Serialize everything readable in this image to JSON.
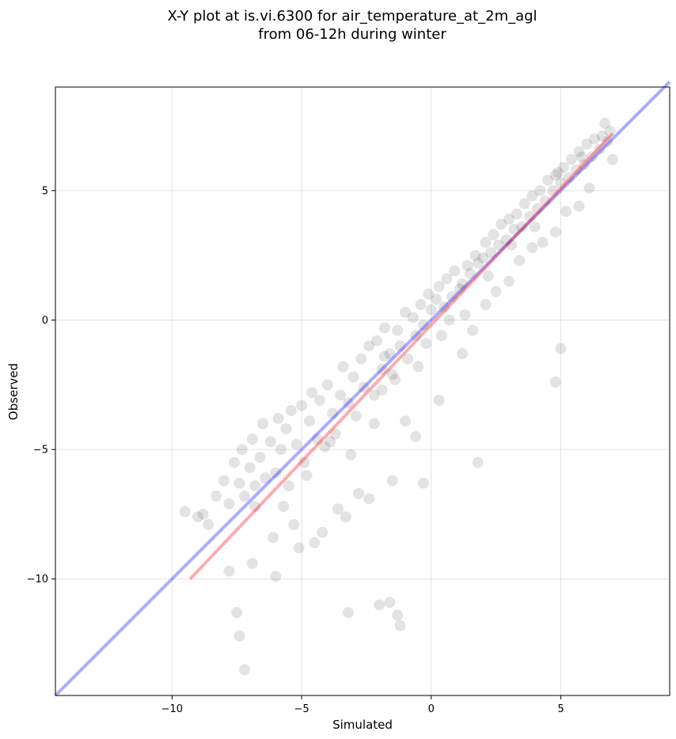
{
  "chart_data": {
    "type": "scatter",
    "title_line1": "X-Y plot at is.vi.6300 for air_temperature_at_2m_agl",
    "title_line2": "from 06-12h during winter",
    "xlabel": "Simulated",
    "ylabel": "Observed",
    "xlim": [
      -14.5,
      9.2
    ],
    "ylim": [
      -14.5,
      9.0
    ],
    "xticks": [
      -10,
      -5,
      0,
      5
    ],
    "yticks": [
      -10,
      -5,
      0,
      5
    ],
    "tick_labels_x": [
      "−10",
      "−5",
      "0",
      "5"
    ],
    "tick_labels_y": [
      "−10",
      "−5",
      "0",
      "5"
    ],
    "grid": true,
    "legend": false,
    "colors": {
      "points": "#000000",
      "identity_line": "#0000ff",
      "fit_line": "#ff0000"
    },
    "identity_line": {
      "x": [
        -14.5,
        9.2
      ],
      "y": [
        -14.5,
        9.2
      ]
    },
    "fit_line": {
      "x": [
        -9.3,
        7.0
      ],
      "y": [
        -10.0,
        7.2
      ]
    },
    "series": [
      {
        "x": [
          -9.5,
          -9.0,
          -8.8,
          -8.6,
          -8.3,
          -8.0,
          -7.8,
          -7.6,
          -7.4,
          -7.3,
          -7.2,
          -7.0,
          -6.9,
          -6.8,
          -6.6,
          -6.5,
          -6.4,
          -6.2,
          -6.0,
          -5.9,
          -5.8,
          -5.6,
          -5.5,
          -5.4,
          -5.2,
          -5.0,
          -4.9,
          -4.7,
          -4.6,
          -4.4,
          -4.3,
          -4.1,
          -4.0,
          -3.8,
          -3.7,
          -3.5,
          -3.4,
          -3.2,
          -3.0,
          -2.9,
          -2.7,
          -2.6,
          -2.4,
          -2.2,
          -2.1,
          -1.9,
          -1.8,
          -1.6,
          -1.5,
          -1.3,
          -1.2,
          -1.0,
          -0.9,
          -0.7,
          -0.6,
          -0.4,
          -0.3,
          -0.1,
          0.0,
          0.2,
          0.3,
          0.5,
          0.6,
          0.8,
          0.9,
          1.1,
          1.2,
          1.4,
          1.5,
          1.7,
          1.8,
          2.0,
          2.1,
          2.3,
          2.4,
          2.6,
          2.7,
          2.9,
          3.0,
          3.2,
          3.3,
          3.5,
          3.6,
          3.8,
          3.9,
          4.1,
          4.2,
          4.4,
          4.5,
          4.7,
          4.8,
          5.0,
          5.1,
          5.3,
          5.4,
          5.6,
          5.7,
          5.9,
          6.0,
          6.2,
          6.3,
          6.5,
          6.6,
          6.8,
          6.9,
          7.0,
          -7.5,
          -7.4,
          -7.2,
          -2.0,
          -1.6,
          -1.3,
          -1.2,
          -3.2,
          5.0,
          4.8,
          1.8,
          -1.8,
          -0.3,
          -6.8,
          -5.7,
          -4.8,
          -3.9,
          -3.1,
          -2.2,
          -1.4,
          -0.5,
          0.4,
          1.3,
          2.2,
          3.1,
          4.0,
          4.9,
          5.8,
          6.7,
          -6.1,
          -5.3,
          -4.5,
          -3.6,
          -2.8,
          -1.9,
          -1.0,
          -0.2,
          0.7,
          1.6,
          2.5,
          3.4,
          4.3,
          5.2,
          6.1,
          -7.8,
          -6.9,
          -6.0,
          -5.1,
          -4.2,
          -3.3,
          -2.4,
          -1.5,
          -0.6,
          0.3,
          1.2,
          2.1,
          3.0,
          3.9,
          4.8,
          5.7
        ],
        "y": [
          -7.4,
          -7.6,
          -7.5,
          -7.9,
          -6.8,
          -6.2,
          -7.1,
          -5.5,
          -6.3,
          -5.0,
          -6.8,
          -5.7,
          -4.6,
          -7.2,
          -5.3,
          -4.0,
          -6.1,
          -4.7,
          -5.9,
          -3.8,
          -5.0,
          -4.2,
          -6.4,
          -3.5,
          -4.8,
          -3.3,
          -5.5,
          -3.9,
          -2.8,
          -4.6,
          -3.1,
          -4.9,
          -2.5,
          -3.6,
          -4.4,
          -2.9,
          -1.8,
          -3.2,
          -2.2,
          -3.7,
          -1.5,
          -2.6,
          -1.0,
          -2.9,
          -0.8,
          -1.9,
          -0.3,
          -1.3,
          -2.1,
          -0.4,
          -1.0,
          0.3,
          -1.5,
          0.1,
          -0.6,
          0.6,
          -0.2,
          1.0,
          0.4,
          0.8,
          1.3,
          0.5,
          1.6,
          0.9,
          1.9,
          1.2,
          1.4,
          2.1,
          1.8,
          2.5,
          2.2,
          2.4,
          3.0,
          2.6,
          3.3,
          2.9,
          3.7,
          3.1,
          3.9,
          3.5,
          4.1,
          3.6,
          4.5,
          4.0,
          4.8,
          4.3,
          5.0,
          4.6,
          5.4,
          5.0,
          5.6,
          5.3,
          5.9,
          5.5,
          6.2,
          5.8,
          6.5,
          6.0,
          6.8,
          6.3,
          7.0,
          6.6,
          7.1,
          6.9,
          7.3,
          6.2,
          -11.3,
          -12.2,
          -13.5,
          -11.0,
          -10.9,
          -11.4,
          -11.8,
          -11.3,
          -1.1,
          -2.4,
          -5.5,
          -1.4,
          -6.3,
          -6.4,
          -7.2,
          -6.0,
          -4.7,
          -5.2,
          -4.0,
          -2.3,
          -1.8,
          -0.6,
          0.2,
          1.7,
          2.9,
          3.6,
          5.7,
          6.3,
          7.6,
          -8.4,
          -7.9,
          -8.6,
          -7.3,
          -6.7,
          -2.7,
          -3.9,
          -0.9,
          0.0,
          -0.4,
          1.1,
          2.3,
          3.0,
          4.2,
          5.1,
          -9.7,
          -9.4,
          -9.9,
          -8.8,
          -8.2,
          -7.6,
          -6.9,
          -6.2,
          -4.5,
          -3.1,
          -1.3,
          0.6,
          1.5,
          2.8,
          3.4,
          4.4
        ]
      }
    ]
  }
}
